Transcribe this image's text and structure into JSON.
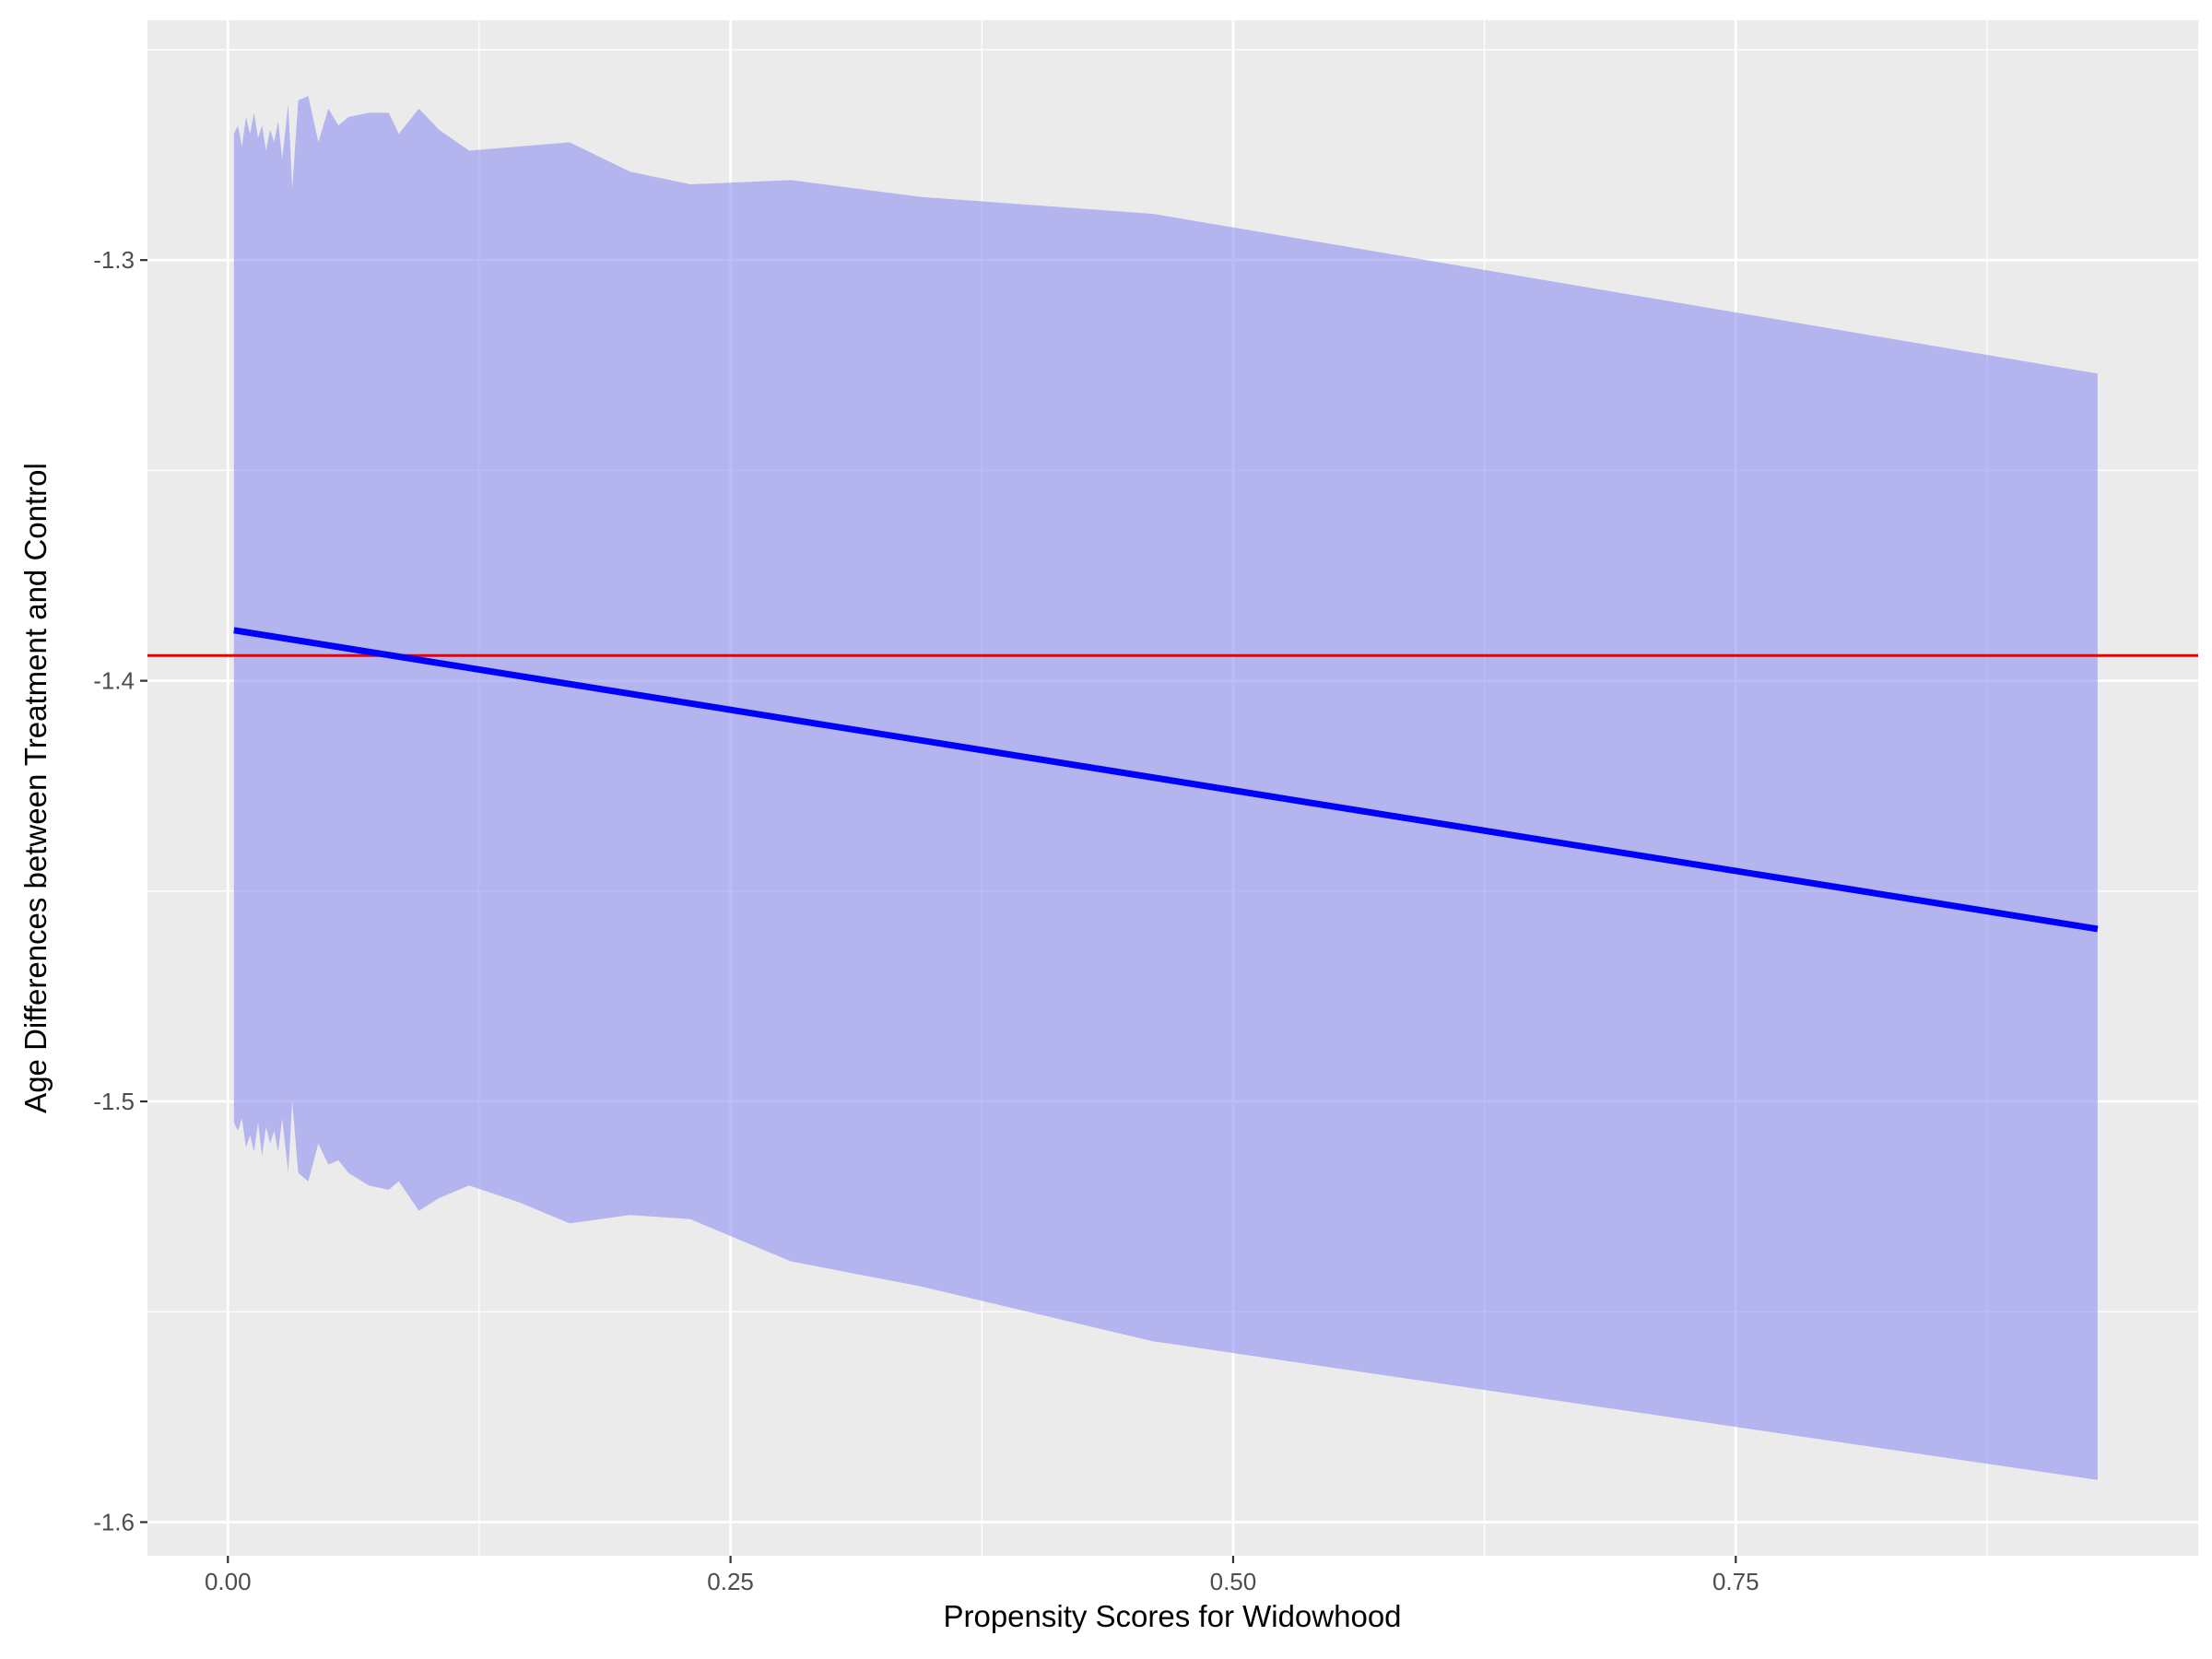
{
  "colors": {
    "panel_background": "#ebebeb",
    "grid_line": "#ffffff",
    "tick_mark": "#333333",
    "tick_label": "#4d4d4d",
    "axis_title": "#000000",
    "ribbon_fill": "#8f8ff2",
    "ribbon_opacity": 0.6,
    "fit_line": "#0000ff",
    "reference_line": "#ee0000"
  },
  "chart_data": {
    "type": "line",
    "title": "",
    "xlabel": "Propensity Scores for Widowhood",
    "ylabel": "Age Differences between Treatment and Control",
    "xlim": [
      -0.04,
      0.98
    ],
    "ylim": [
      -1.608,
      -1.243
    ],
    "x_ticks": [
      0.0,
      0.25,
      0.5,
      0.75
    ],
    "x_tick_labels": [
      "0.00",
      "0.25",
      "0.50",
      "0.75"
    ],
    "y_ticks": [
      -1.3,
      -1.4,
      -1.5,
      -1.6
    ],
    "y_tick_labels": [
      "-1.3",
      "-1.4",
      "-1.5",
      "-1.6"
    ],
    "grid": true,
    "legend": "none",
    "series": [
      {
        "type": "line",
        "x": [
          0.003,
          0.93
        ],
        "y": [
          -1.388,
          -1.459
        ]
      },
      {
        "type": "hline",
        "y": -1.394
      },
      {
        "type": "ribbon",
        "x": [
          0.003,
          0.005,
          0.007,
          0.009,
          0.011,
          0.013,
          0.015,
          0.017,
          0.019,
          0.021,
          0.023,
          0.025,
          0.027,
          0.03,
          0.032,
          0.035,
          0.04,
          0.045,
          0.05,
          0.055,
          0.06,
          0.07,
          0.08,
          0.085,
          0.095,
          0.105,
          0.12,
          0.145,
          0.17,
          0.2,
          0.23,
          0.28,
          0.345,
          0.46,
          0.93
        ],
        "ymin": [
          -1.505,
          -1.507,
          -1.504,
          -1.511,
          -1.508,
          -1.512,
          -1.505,
          -1.513,
          -1.506,
          -1.51,
          -1.507,
          -1.512,
          -1.504,
          -1.517,
          -1.5,
          -1.517,
          -1.519,
          -1.51,
          -1.515,
          -1.514,
          -1.517,
          -1.52,
          -1.521,
          -1.519,
          -1.526,
          -1.523,
          -1.52,
          -1.524,
          -1.529,
          -1.527,
          -1.528,
          -1.538,
          -1.544,
          -1.557,
          -1.59
        ],
        "ymax": [
          -1.27,
          -1.268,
          -1.273,
          -1.266,
          -1.27,
          -1.265,
          -1.271,
          -1.268,
          -1.274,
          -1.269,
          -1.272,
          -1.267,
          -1.276,
          -1.263,
          -1.283,
          -1.262,
          -1.261,
          -1.272,
          -1.264,
          -1.268,
          -1.266,
          -1.265,
          -1.265,
          -1.27,
          -1.264,
          -1.269,
          -1.274,
          -1.273,
          -1.272,
          -1.279,
          -1.282,
          -1.281,
          -1.285,
          -1.289,
          -1.327
        ]
      }
    ]
  }
}
